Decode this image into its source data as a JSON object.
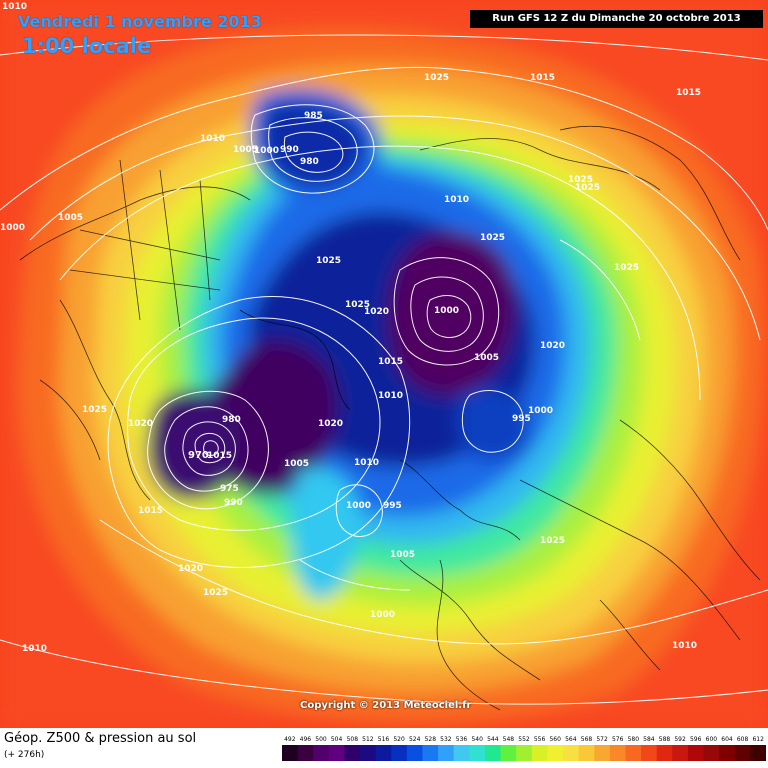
{
  "header": {
    "date": "Vendredi 1 novembre 2013",
    "time": "1:00 locale",
    "run": "Run GFS 12 Z du Dimanche 20 octobre 2013",
    "corner": "1010"
  },
  "footer": {
    "title": "Géop. Z500 & pression au sol",
    "subtitle": "(+ 276h)",
    "copyright": "Copyright © 2013 Meteociel.fr"
  },
  "legend": {
    "ticks": [
      "492",
      "496",
      "500",
      "504",
      "508",
      "512",
      "516",
      "520",
      "524",
      "528",
      "532",
      "536",
      "540",
      "544",
      "548",
      "552",
      "556",
      "560",
      "564",
      "568",
      "572",
      "576",
      "580",
      "584",
      "588",
      "592",
      "596",
      "600",
      "604",
      "608",
      "612"
    ],
    "colors": [
      "#200020",
      "#3a0040",
      "#52006a",
      "#600080",
      "#30006a",
      "#1c0a82",
      "#0c1aa0",
      "#0830c0",
      "#0a50e0",
      "#1a78f0",
      "#30a0f8",
      "#40c8f0",
      "#30e0d0",
      "#20e890",
      "#60f040",
      "#a0f030",
      "#d8f028",
      "#f0f030",
      "#f8e040",
      "#f8c838",
      "#f8a830",
      "#f88828",
      "#f86820",
      "#f04818",
      "#e02810",
      "#c81810",
      "#b00808",
      "#980808",
      "#800000",
      "#600000",
      "#400000"
    ]
  },
  "isobars": [
    "1010",
    "1005",
    "1000",
    "995",
    "990",
    "985",
    "980",
    "975",
    "970",
    "1015",
    "1020",
    "1025"
  ],
  "map_labels": {
    "l1025a": "1025",
    "l1015a": "1015",
    "l1015b": "1015",
    "l1010a": "1010",
    "l1005a": "1005",
    "l1000a": "1000",
    "l990a": "990",
    "l985a": "985",
    "l980a": "980",
    "l1010b": "1010",
    "l1025b": "1025",
    "l1025c": "1025",
    "l1025d": "1025",
    "l1005b": "1005",
    "l1000b": "1000",
    "l1025e": "1025",
    "l1020a": "1020",
    "l1000c": "1000",
    "l1015c": "1015",
    "l1005c": "1005",
    "l1020b": "1020",
    "l995a": "995",
    "l1000d": "1000",
    "l1025f": "1025",
    "l1020c": "1020",
    "l980b": "980",
    "l970": "970",
    "l1015d": "1015",
    "l975": "975",
    "l990b": "990",
    "l1005d": "1005",
    "l1010c": "1010",
    "l1020d": "1020",
    "l1000e": "1000",
    "l995b": "995",
    "l1005e": "1005",
    "l1025g": "1025",
    "l1015e": "1015",
    "l1020e": "1020",
    "l1025h": "1025",
    "l1010d": "1010",
    "l1000f": "1000",
    "l1025i": "1025",
    "l1010e": "1010",
    "l1025j": "1025",
    "l1010f": "1010"
  }
}
